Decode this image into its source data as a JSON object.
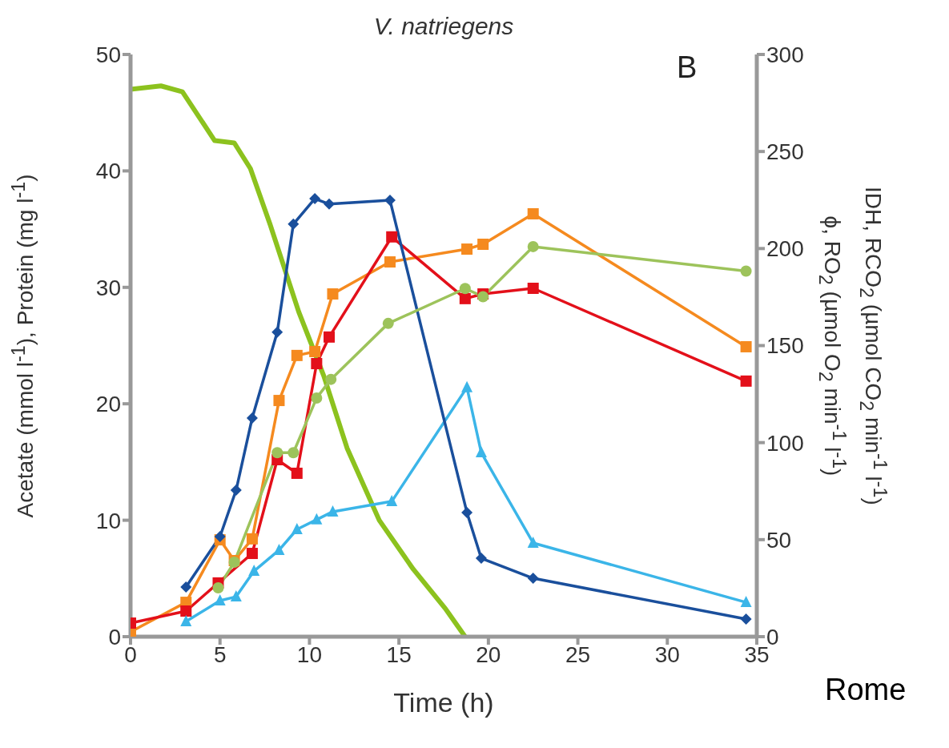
{
  "chart_data": {
    "type": "line",
    "title": "V. natriegens",
    "xlabel": "Time (h)",
    "ylabel": "Acetate (mmol l$^{-1}$), Protein (mg l$^{-1}$)",
    "y2label": "IDH, RCO$_{2}$ (µmol CO$_{2}$ min$^{-1}$ l$^{-1}$)\nϕ, RO$_{2}$ (µmol O$_{2}$ min$^{-1}$ l$^{-1}$)",
    "annotations": [
      "B",
      "Rome"
    ],
    "xlim": [
      0,
      35
    ],
    "xticks": [
      0,
      5,
      10,
      15,
      20,
      25,
      30,
      35
    ],
    "ylim": [
      0,
      50
    ],
    "yticks": [
      0,
      10,
      20,
      30,
      40,
      50
    ],
    "y2lim": [
      0,
      300
    ],
    "y2ticks": [
      0,
      50,
      100,
      150,
      200,
      250,
      300
    ],
    "grid": false,
    "legend": false,
    "series": [
      {
        "color": "#8cc21e",
        "marker": "none",
        "axis": "y",
        "x": [
          0,
          1.7,
          2.9,
          4.7,
          5.8,
          6.7,
          7.8,
          9.4,
          10.8,
          12.1,
          13.9,
          15.8,
          17.6,
          18.7
        ],
        "values": [
          47,
          47.3,
          46.8,
          42.6,
          42.4,
          40.2,
          35.4,
          27.9,
          22.4,
          16.2,
          10,
          5.8,
          2.4,
          0
        ]
      },
      {
        "color": "#f58a1f",
        "marker": "square",
        "axis": "y2",
        "x": [
          0,
          3.1,
          5.0,
          5.8,
          6.8,
          8.3,
          9.3,
          10.3,
          11.3,
          14.5,
          18.8,
          19.7,
          22.5,
          34.4
        ],
        "values": [
          2.5,
          17.7,
          49.9,
          39.2,
          50.4,
          121.7,
          144.9,
          146.9,
          176.6,
          193.1,
          199.7,
          202.2,
          217.9,
          149.4
        ]
      },
      {
        "color": "#e3101a",
        "marker": "square",
        "axis": "y2",
        "x": [
          0,
          3.1,
          4.9,
          6.8,
          8.2,
          9.3,
          10.4,
          11.1,
          14.6,
          18.7,
          19.7,
          22.5,
          34.4
        ],
        "values": [
          7,
          13.2,
          27.7,
          42.9,
          91.2,
          84.2,
          140.7,
          154.4,
          206,
          174.2,
          176.6,
          179.5,
          131.7
        ]
      },
      {
        "color": "#3bb5e8",
        "marker": "triangle",
        "axis": "y2",
        "x": [
          3.1,
          5.0,
          5.9,
          6.9,
          8.3,
          9.3,
          10.4,
          11.3,
          14.6,
          18.8,
          19.6,
          22.5,
          34.4
        ],
        "values": [
          7.8,
          18.6,
          20.6,
          33.8,
          44.6,
          55.3,
          60.3,
          64.4,
          69.7,
          128.4,
          94.9,
          48.3,
          17.7
        ]
      },
      {
        "color": "#1a4f9c",
        "marker": "diamond",
        "axis": "y2",
        "x": [
          3.1,
          5.0,
          5.9,
          6.8,
          8.2,
          9.1,
          10.3,
          11.1,
          14.5,
          18.8,
          19.6,
          22.5,
          34.4
        ],
        "values": [
          25.6,
          51.6,
          75.5,
          112.7,
          156.9,
          212.6,
          225.7,
          222.9,
          224.9,
          64,
          40.4,
          30.1,
          9.1
        ]
      },
      {
        "color": "#9dc35b",
        "marker": "circle",
        "axis": "y",
        "x": [
          4.9,
          5.8,
          8.2,
          9.1,
          10.4,
          11.2,
          14.4,
          18.7,
          19.7,
          22.5,
          34.4
        ],
        "values": [
          4.2,
          6.4,
          15.8,
          15.8,
          20.5,
          22.1,
          26.9,
          29.9,
          29.2,
          33.5,
          31.4
        ]
      }
    ]
  }
}
